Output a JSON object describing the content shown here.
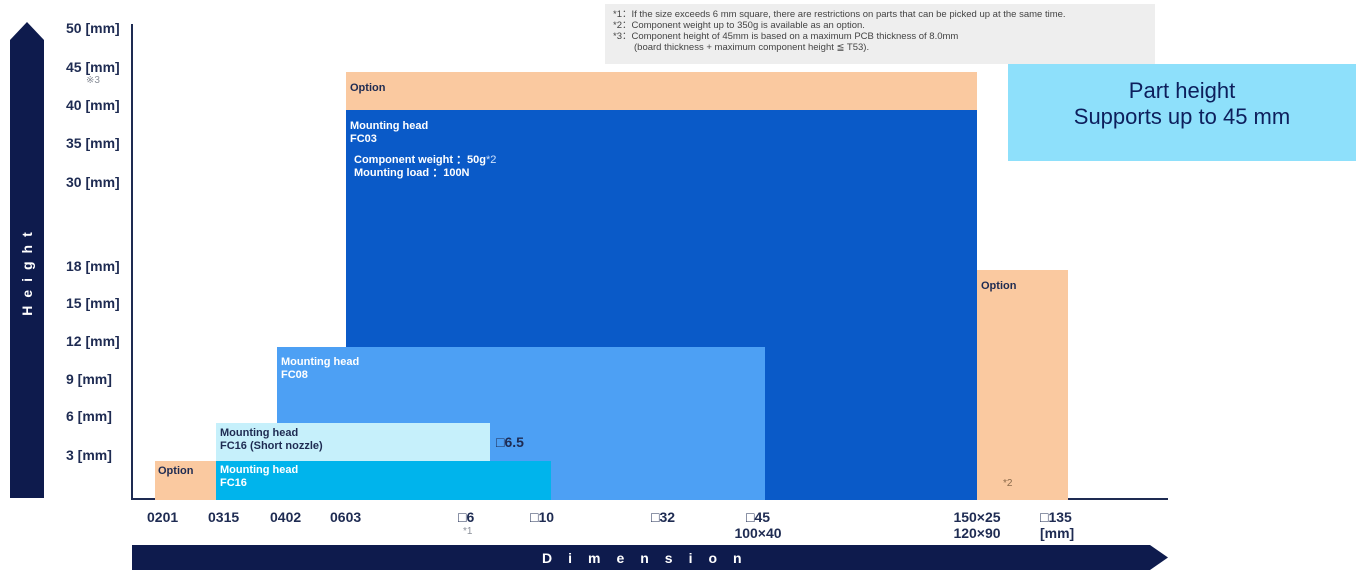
{
  "chart_data": {
    "type": "bar",
    "title": "",
    "xlabel": "Dimension",
    "ylabel": "Height",
    "y_ticks": [
      {
        "label": "50 [mm]",
        "value": 50
      },
      {
        "label": "45 [mm]",
        "value": 45,
        "note": "※3"
      },
      {
        "label": "40 [mm]",
        "value": 40
      },
      {
        "label": "35 [mm]",
        "value": 35
      },
      {
        "label": "30 [mm]",
        "value": 30
      },
      {
        "label": "18 [mm]",
        "value": 18
      },
      {
        "label": "15 [mm]",
        "value": 15
      },
      {
        "label": "12 [mm]",
        "value": 12
      },
      {
        "label": "9 [mm]",
        "value": 9
      },
      {
        "label": "6 [mm]",
        "value": 6
      },
      {
        "label": "3 [mm]",
        "value": 3
      }
    ],
    "x_ticks": [
      {
        "label": "0201"
      },
      {
        "label": "0315"
      },
      {
        "label": "0402"
      },
      {
        "label": "0603"
      },
      {
        "label": "□6",
        "note": "*1"
      },
      {
        "label": "□10"
      },
      {
        "label": "□32"
      },
      {
        "label": "□45",
        "label2": "100×40"
      },
      {
        "label": "150×25",
        "label2": "120×90"
      },
      {
        "label": "□135",
        "label2": "[mm]"
      }
    ],
    "regions": [
      {
        "label": "Option",
        "x_from": "0603",
        "x_to": "150×25",
        "height_to": "45 [mm]",
        "color": "#fac9a0"
      },
      {
        "label": "Mounting head",
        "head": "FC03",
        "x_from": "0603",
        "x_to": "150×25",
        "height_to": "40 [mm]",
        "color": "#0a5ac8",
        "extra": [
          "Component weight ：50g",
          "Mounting load ：100N"
        ],
        "extra_note": "*2"
      },
      {
        "label": "Option",
        "x_from": "150×25",
        "x_to": "□135",
        "height_to": "18 [mm]",
        "color": "#fac9a0",
        "note": "*2"
      },
      {
        "label": "Mounting head",
        "head": "FC08",
        "x_from": "0402",
        "x_to": "□45",
        "height_to": "12 [mm]",
        "color": "#4da0f4"
      },
      {
        "label": "Mounting head",
        "head": "FC16 (Short nozzle)",
        "x_from": "0315",
        "x_to": "□6.5",
        "height_to": "6 [mm]",
        "color": "#c6f0fb",
        "edge_label": "□6.5"
      },
      {
        "label": "Option",
        "x_from": "0201",
        "x_to": "0315",
        "height_to": "3 [mm]",
        "color": "#fac9a0"
      },
      {
        "label": "Mounting head",
        "head": "FC16",
        "x_from": "0315",
        "x_to": "□10",
        "height_to": "3 [mm]",
        "color": "#00b4ec"
      }
    ]
  },
  "notes": [
    "*1：If the size exceeds 6 mm square, there are restrictions on parts that can be picked up at the same time.",
    "*2：Component weight up to 350g is available as an option.",
    "*3：Component height of 45mm is based on a maximum PCB thickness of 8.0mm",
    "(board thickness + maximum component height ≦ T53)."
  ],
  "callout": {
    "line1": "Part height",
    "line2": "Supports up to 45 mm"
  },
  "colors": {
    "navy": "#0e1b4d",
    "option": "#fac9a0",
    "fc03": "#0a5ac8",
    "fc08": "#4da0f4",
    "fc16_short": "#c6f0fb",
    "fc16": "#00b4ec",
    "callout": "#8ee0fb"
  }
}
